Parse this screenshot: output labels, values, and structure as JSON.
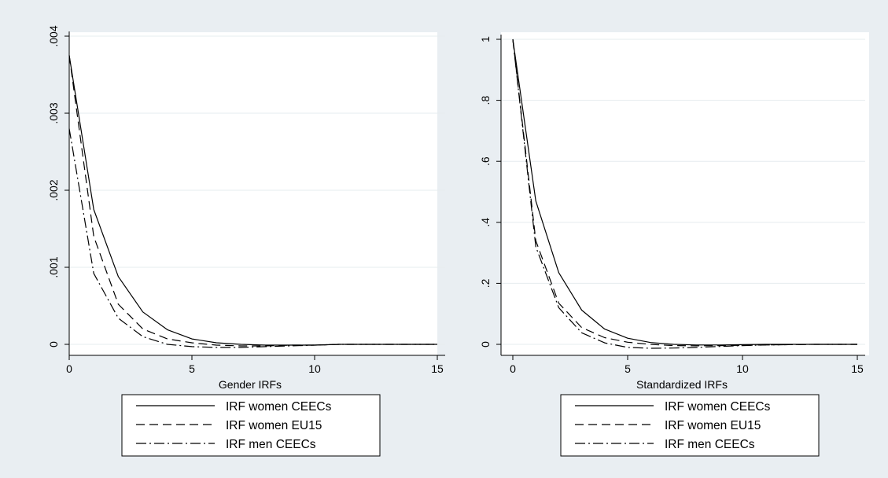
{
  "chart_data": [
    {
      "type": "line",
      "xlabel": "Gender IRFs",
      "ylabel": "",
      "xlim": [
        0,
        15
      ],
      "ylim": [
        0,
        0.004
      ],
      "xticks": [
        0,
        5,
        10,
        15
      ],
      "xtick_labels": [
        "0",
        "5",
        "10",
        "15"
      ],
      "yticks": [
        0,
        0.001,
        0.002,
        0.003,
        0.004
      ],
      "ytick_labels": [
        "0",
        ".001",
        ".002",
        ".003",
        ".004"
      ],
      "grid": true,
      "legend_position": "bottom",
      "x": [
        0,
        1,
        2,
        3,
        4,
        5,
        6,
        7,
        8,
        9,
        10,
        11,
        12,
        13,
        14,
        15
      ],
      "series": [
        {
          "name": "IRF women CEECs",
          "style": "solid",
          "values": [
            0.00375,
            0.00175,
            0.00088,
            0.00042,
            0.00019,
            7e-05,
            2e-05,
            0.0,
            -1e-05,
            -1e-05,
            -1e-05,
            0.0,
            0.0,
            0.0,
            0.0,
            0.0
          ]
        },
        {
          "name": "IRF women EU15",
          "style": "dash",
          "values": [
            0.00375,
            0.0014,
            0.00052,
            0.0002,
            7e-05,
            2e-05,
            -1e-05,
            -2e-05,
            -2e-05,
            -1e-05,
            -1e-05,
            0.0,
            0.0,
            0.0,
            0.0,
            0.0
          ]
        },
        {
          "name": "IRF men CEECs",
          "style": "dashdot",
          "values": [
            0.0028,
            0.00092,
            0.00034,
            0.0001,
            0.0,
            -3e-05,
            -4e-05,
            -4e-05,
            -3e-05,
            -2e-05,
            -1e-05,
            0.0,
            0.0,
            0.0,
            0.0,
            0.0
          ]
        }
      ]
    },
    {
      "type": "line",
      "xlabel": "Standardized IRFs",
      "ylabel": "",
      "xlim": [
        0,
        15
      ],
      "ylim": [
        0,
        1
      ],
      "xticks": [
        0,
        5,
        10,
        15
      ],
      "xtick_labels": [
        "0",
        "5",
        "10",
        "15"
      ],
      "yticks": [
        0,
        0.2,
        0.4,
        0.6,
        0.8,
        1
      ],
      "ytick_labels": [
        "0",
        ".2",
        ".4",
        ".6",
        ".8",
        "1"
      ],
      "grid": true,
      "legend_position": "bottom",
      "x": [
        0,
        1,
        2,
        3,
        4,
        5,
        6,
        7,
        8,
        9,
        10,
        11,
        12,
        13,
        14,
        15
      ],
      "series": [
        {
          "name": "IRF women CEECs",
          "style": "solid",
          "values": [
            1.0,
            0.47,
            0.235,
            0.112,
            0.05,
            0.02,
            0.006,
            0.0,
            -0.002,
            -0.002,
            -0.001,
            0.0,
            0.0,
            0.0,
            0.0,
            0.0
          ]
        },
        {
          "name": "IRF women EU15",
          "style": "dash",
          "values": [
            1.0,
            0.34,
            0.135,
            0.055,
            0.022,
            0.007,
            0.0,
            -0.004,
            -0.005,
            -0.004,
            -0.003,
            -0.002,
            -0.001,
            0.0,
            0.0,
            0.0
          ]
        },
        {
          "name": "IRF men CEECs",
          "style": "dashdot",
          "values": [
            1.0,
            0.32,
            0.12,
            0.038,
            0.005,
            -0.01,
            -0.013,
            -0.012,
            -0.01,
            -0.007,
            -0.004,
            -0.002,
            -0.001,
            0.0,
            0.0,
            0.0
          ]
        }
      ]
    }
  ]
}
